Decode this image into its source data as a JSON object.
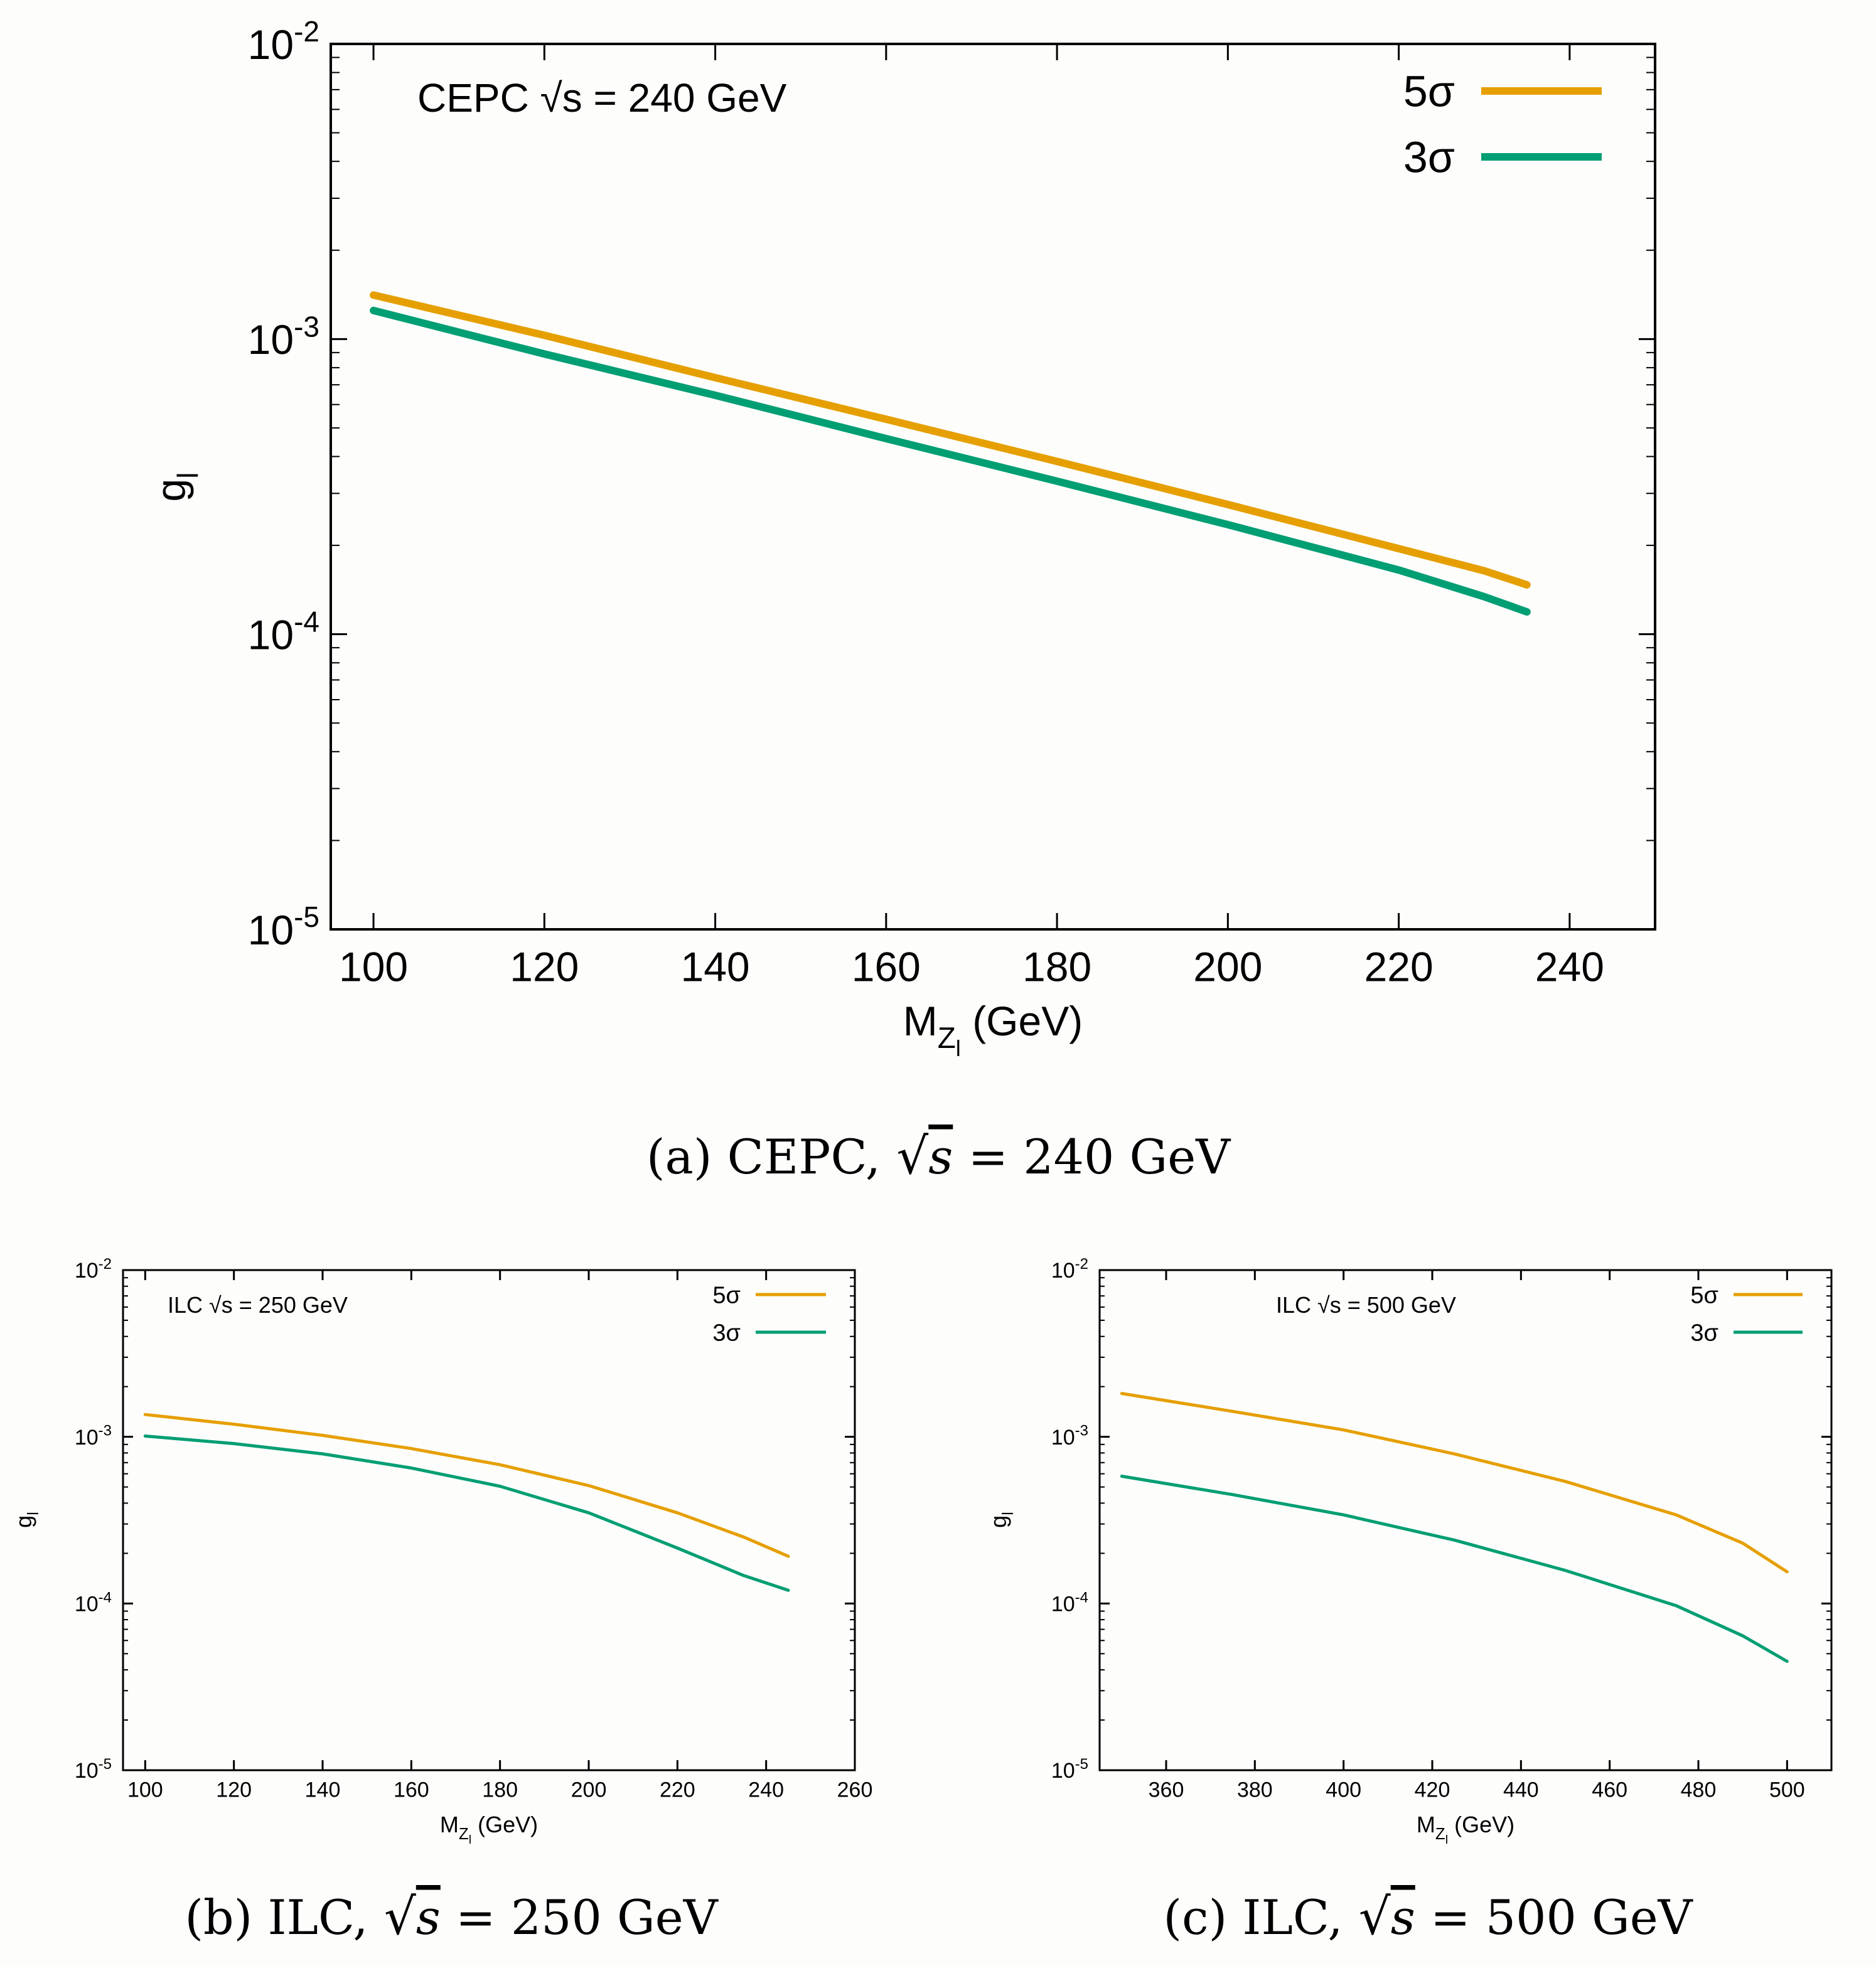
{
  "colors": {
    "sigma5": "#e69f00",
    "sigma3": "#009e73",
    "axis": "#000000",
    "background": "#fdfdfb"
  },
  "chart_data": [
    {
      "id": "a",
      "type": "line",
      "caption": "(a) CEPC, √s = 240 GeV",
      "caption_main": "(a) CEPC,",
      "caption_tail": "= 240 GeV",
      "annotation": "CEPC √s = 240 GeV",
      "xlabel_prefix": "M",
      "xlabel_sub": "Z",
      "xlabel_subsub": "l",
      "xlabel_suffix": " (GeV)",
      "ylabel_main": "g",
      "ylabel_sub": "l",
      "xlim": [
        95,
        250
      ],
      "ylim": [
        1e-05,
        0.01
      ],
      "y_scale": "log",
      "x_ticks": [
        100,
        120,
        140,
        160,
        180,
        200,
        220,
        240
      ],
      "y_ticks": [
        {
          "value": 0.01,
          "base": "10",
          "exp": "-2"
        },
        {
          "value": 0.001,
          "base": "10",
          "exp": "-3"
        },
        {
          "value": 0.0001,
          "base": "10",
          "exp": "-4"
        },
        {
          "value": 1e-05,
          "base": "10",
          "exp": "-5"
        }
      ],
      "legend_position": "top-right",
      "series": [
        {
          "name": "5σ",
          "color_key": "sigma5",
          "x": [
            100,
            120,
            140,
            160,
            180,
            200,
            220,
            230,
            235
          ],
          "y": [
            0.00141,
            0.00103,
            0.00074,
            0.000535,
            0.000385,
            0.000275,
            0.000195,
            0.000164,
            0.000147
          ]
        },
        {
          "name": "3σ",
          "color_key": "sigma3",
          "x": [
            100,
            120,
            140,
            160,
            180,
            200,
            220,
            230,
            235
          ],
          "y": [
            0.00125,
            0.00089,
            0.000645,
            0.00046,
            0.00033,
            0.000235,
            0.000165,
            0.000134,
            0.000119
          ]
        }
      ]
    },
    {
      "id": "b",
      "type": "line",
      "caption": "(b) ILC, √s = 250 GeV",
      "caption_main": "(b) ILC,",
      "caption_tail": "= 250 GeV",
      "annotation": "ILC √s = 250 GeV",
      "xlabel_prefix": "M",
      "xlabel_sub": "Z",
      "xlabel_subsub": "l",
      "xlabel_suffix": " (GeV)",
      "ylabel_main": "g",
      "ylabel_sub": "l",
      "xlim": [
        95,
        260
      ],
      "ylim": [
        1e-05,
        0.01
      ],
      "y_scale": "log",
      "x_ticks": [
        100,
        120,
        140,
        160,
        180,
        200,
        220,
        240,
        260
      ],
      "y_ticks": [
        {
          "value": 0.01,
          "base": "10",
          "exp": "-2"
        },
        {
          "value": 0.001,
          "base": "10",
          "exp": "-3"
        },
        {
          "value": 0.0001,
          "base": "10",
          "exp": "-4"
        },
        {
          "value": 1e-05,
          "base": "10",
          "exp": "-5"
        }
      ],
      "legend_position": "top-right",
      "series": [
        {
          "name": "5σ",
          "color_key": "sigma5",
          "x": [
            100,
            120,
            140,
            160,
            180,
            200,
            220,
            235,
            245
          ],
          "y": [
            0.00136,
            0.00119,
            0.00102,
            0.00085,
            0.00068,
            0.00051,
            0.00035,
            0.00025,
            0.000192
          ]
        },
        {
          "name": "3σ",
          "color_key": "sigma3",
          "x": [
            100,
            120,
            140,
            160,
            180,
            200,
            220,
            235,
            245
          ],
          "y": [
            0.00101,
            0.00091,
            0.00079,
            0.00065,
            0.000505,
            0.00035,
            0.000215,
            0.000147,
            0.00012
          ]
        }
      ]
    },
    {
      "id": "c",
      "type": "line",
      "caption": "(c) ILC, √s = 500 GeV",
      "caption_main": "(c) ILC,",
      "caption_tail": "= 500 GeV",
      "annotation": "ILC √s = 500 GeV",
      "xlabel_prefix": "M",
      "xlabel_sub": "Z",
      "xlabel_subsub": "l",
      "xlabel_suffix": " (GeV)",
      "ylabel_main": "g",
      "ylabel_sub": "l",
      "xlim": [
        345,
        510
      ],
      "ylim": [
        1e-05,
        0.01
      ],
      "y_scale": "log",
      "x_ticks": [
        360,
        380,
        400,
        420,
        440,
        460,
        480,
        500
      ],
      "y_ticks": [
        {
          "value": 0.01,
          "base": "10",
          "exp": "-2"
        },
        {
          "value": 0.001,
          "base": "10",
          "exp": "-3"
        },
        {
          "value": 0.0001,
          "base": "10",
          "exp": "-4"
        },
        {
          "value": 1e-05,
          "base": "10",
          "exp": "-5"
        }
      ],
      "legend_position": "top-right",
      "series": [
        {
          "name": "5σ",
          "color_key": "sigma5",
          "x": [
            350,
            375,
            400,
            425,
            450,
            475,
            490,
            500
          ],
          "y": [
            0.00182,
            0.00142,
            0.0011,
            0.00079,
            0.00054,
            0.00034,
            0.00023,
            0.000155
          ]
        },
        {
          "name": "3σ",
          "color_key": "sigma3",
          "x": [
            350,
            375,
            400,
            425,
            450,
            475,
            490,
            500
          ],
          "y": [
            0.00058,
            0.00045,
            0.00034,
            0.00024,
            0.000158,
            9.7e-05,
            6.4e-05,
            4.5e-05
          ]
        }
      ]
    }
  ]
}
